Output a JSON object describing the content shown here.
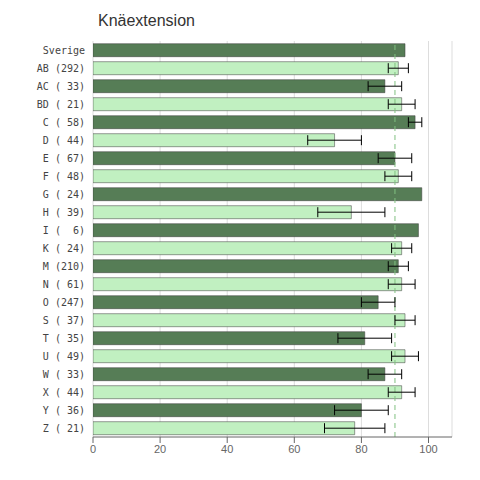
{
  "chart_data": {
    "type": "bar",
    "title": "Knäextension",
    "orientation": "horizontal",
    "categories": [
      "Sverige",
      "AB (292)",
      "AC ( 33)",
      "BD ( 21)",
      "C ( 58)",
      "D ( 44)",
      "E ( 67)",
      "F ( 48)",
      "G ( 24)",
      "H ( 39)",
      "I (  6)",
      "K ( 24)",
      "M (210)",
      "N ( 61)",
      "O (247)",
      "S ( 37)",
      "T ( 35)",
      "U ( 49)",
      "W ( 33)",
      "X ( 44)",
      "Y ( 36)",
      "Z ( 21)"
    ],
    "values": [
      93,
      91,
      87,
      92,
      96,
      72,
      90,
      91,
      98,
      77,
      97,
      92,
      91,
      92,
      85,
      93,
      81,
      93,
      87,
      92,
      80,
      78
    ],
    "errors": [
      0,
      3,
      5,
      4,
      2,
      8,
      5,
      4,
      0,
      10,
      0,
      3,
      3,
      4,
      5,
      3,
      8,
      4,
      5,
      4,
      8,
      9
    ],
    "colors": [
      "#567d56",
      "#c1f0c1",
      "#567d56",
      "#c1f0c1",
      "#567d56",
      "#c1f0c1",
      "#567d56",
      "#c1f0c1",
      "#567d56",
      "#c1f0c1",
      "#567d56",
      "#c1f0c1",
      "#567d56",
      "#c1f0c1",
      "#567d56",
      "#c1f0c1",
      "#567d56",
      "#c1f0c1",
      "#567d56",
      "#c1f0c1",
      "#567d56",
      "#c1f0c1"
    ],
    "reference_line": {
      "x": 90,
      "color": "#80c080",
      "line_style": "dashed"
    },
    "xlim": [
      0,
      107
    ],
    "xticks": [
      0,
      20,
      40,
      60,
      80,
      100
    ],
    "grid": "x"
  }
}
